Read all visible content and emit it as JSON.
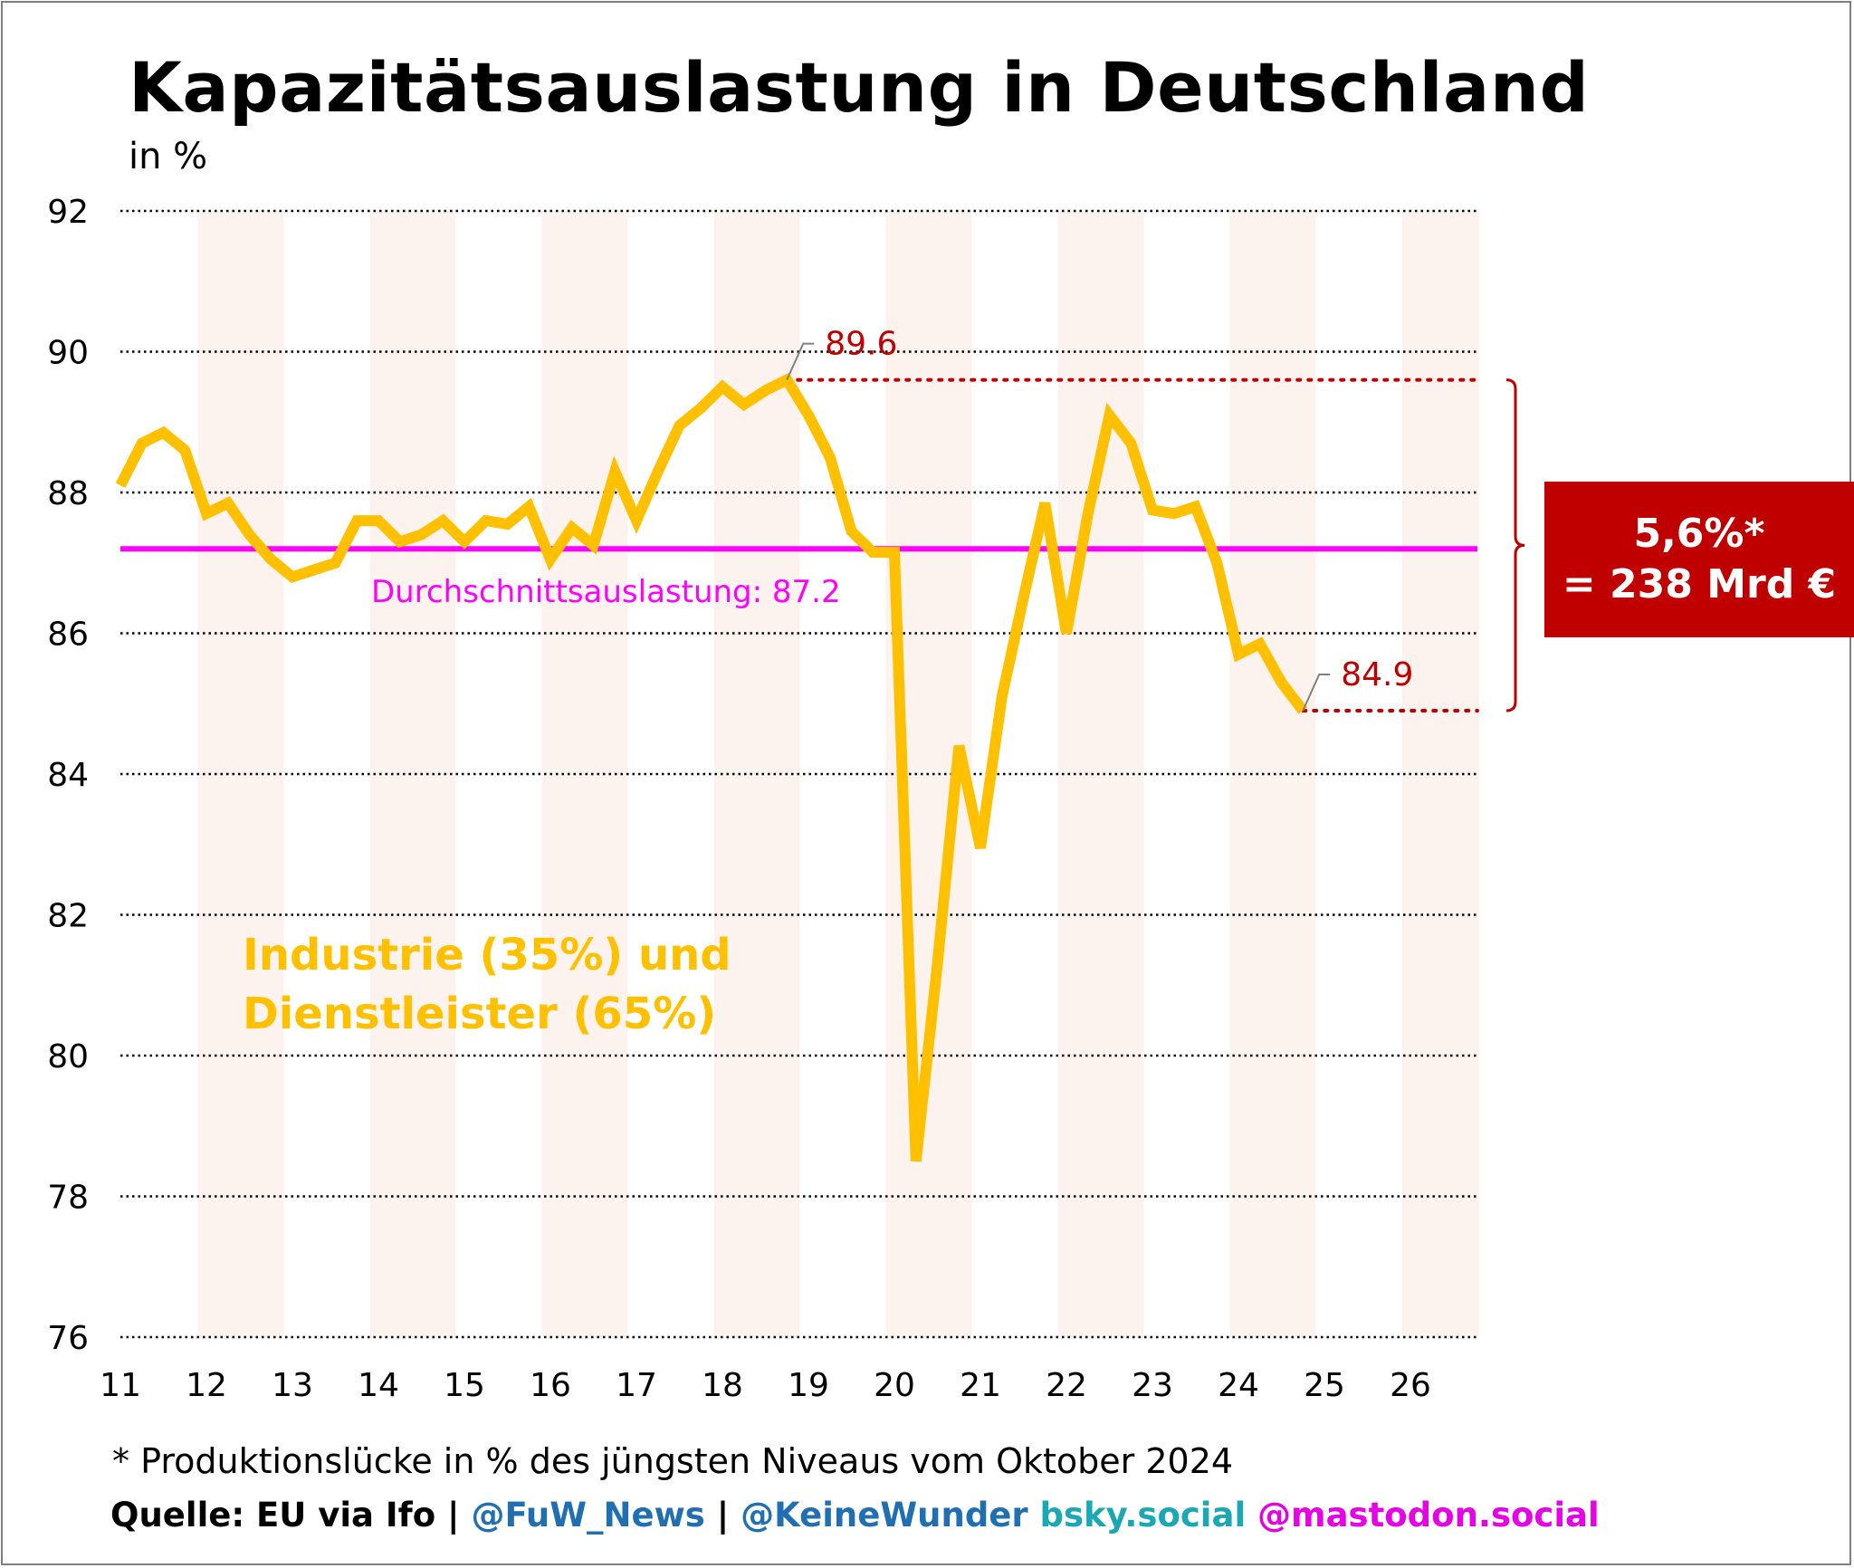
{
  "title": "Kapazitätsauslastung in Deutschland",
  "subtitle": "in %",
  "footnote": "* Produktionslücke in % des jüngsten Niveaus vom Oktober 2024",
  "source": {
    "prefix": "Quelle: EU via Ifo",
    "sep1": " | ",
    "fuw": "@FuW_News",
    "sep2": " | ",
    "handle": "@KeineWunder",
    "bsky": " bsky.social",
    "mastodon": " @mastodon.social"
  },
  "colors": {
    "series": "#ffc000",
    "average": "#ff00ff",
    "highlight": "#c00000",
    "band": "#fdf3ee",
    "fuw": "#1f6fb2",
    "bsky": "#1aa8b5",
    "mastodon": "#e600e6"
  },
  "gap_box": {
    "line1": "5,6%*",
    "line2": "= 238 Mrd €"
  },
  "chart_data": {
    "type": "line",
    "title": "Kapazitätsauslastung in Deutschland",
    "ylabel": "in %",
    "ylim": [
      76,
      92
    ],
    "yticks": [
      "76",
      "78",
      "80",
      "82",
      "84",
      "86",
      "88",
      "90",
      "92"
    ],
    "xlim": [
      2011,
      2026.8
    ],
    "xticks": [
      "11",
      "12",
      "13",
      "14",
      "15",
      "16",
      "17",
      "18",
      "19",
      "20",
      "21",
      "22",
      "23",
      "24",
      "25",
      "26"
    ],
    "grid": true,
    "series": [
      {
        "name": "Industrie (35%) und Dienstleister (65%)",
        "x": [
          2011.0,
          2011.25,
          2011.5,
          2011.75,
          2012.0,
          2012.25,
          2012.5,
          2012.75,
          2013.0,
          2013.25,
          2013.5,
          2013.75,
          2014.0,
          2014.25,
          2014.5,
          2014.75,
          2015.0,
          2015.25,
          2015.5,
          2015.75,
          2016.0,
          2016.25,
          2016.5,
          2016.75,
          2017.0,
          2017.25,
          2017.5,
          2017.75,
          2018.0,
          2018.25,
          2018.5,
          2018.75,
          2019.0,
          2019.25,
          2019.5,
          2019.75,
          2020.0,
          2020.25,
          2020.5,
          2020.75,
          2021.0,
          2021.25,
          2021.5,
          2021.75,
          2022.0,
          2022.25,
          2022.5,
          2022.75,
          2023.0,
          2023.25,
          2023.5,
          2023.75,
          2024.0,
          2024.25,
          2024.5,
          2024.75
        ],
        "values": [
          88.1,
          88.7,
          88.85,
          88.6,
          87.7,
          87.85,
          87.4,
          87.05,
          86.8,
          86.9,
          87.0,
          87.6,
          87.6,
          87.3,
          87.4,
          87.6,
          87.3,
          87.6,
          87.55,
          87.8,
          87.05,
          87.5,
          87.25,
          88.3,
          87.6,
          88.3,
          88.95,
          89.2,
          89.5,
          89.25,
          89.45,
          89.6,
          89.1,
          88.5,
          87.45,
          87.15,
          87.15,
          78.5,
          81.3,
          84.4,
          82.95,
          85.1,
          86.5,
          87.85,
          86.0,
          87.7,
          89.1,
          88.7,
          87.75,
          87.7,
          87.8,
          87.0,
          85.7,
          85.85,
          85.3,
          84.9
        ]
      }
    ],
    "average": {
      "label": "Durchschnittsauslastung: 87.2",
      "value": 87.2
    },
    "annotations": [
      {
        "label": "89.6",
        "x": 2018.75,
        "y": 89.6
      },
      {
        "label": "84.9",
        "x": 2024.75,
        "y": 84.9
      }
    ],
    "bands": [
      [
        2011.9,
        2012.9
      ],
      [
        2013.9,
        2014.9
      ],
      [
        2015.9,
        2016.9
      ],
      [
        2017.9,
        2018.9
      ],
      [
        2019.9,
        2020.9
      ],
      [
        2021.9,
        2022.9
      ],
      [
        2023.9,
        2024.9
      ],
      [
        2025.9,
        2026.8
      ]
    ],
    "series_label_line1": "Industrie (35%) und",
    "series_label_line2": "Dienstleister (65%)"
  }
}
